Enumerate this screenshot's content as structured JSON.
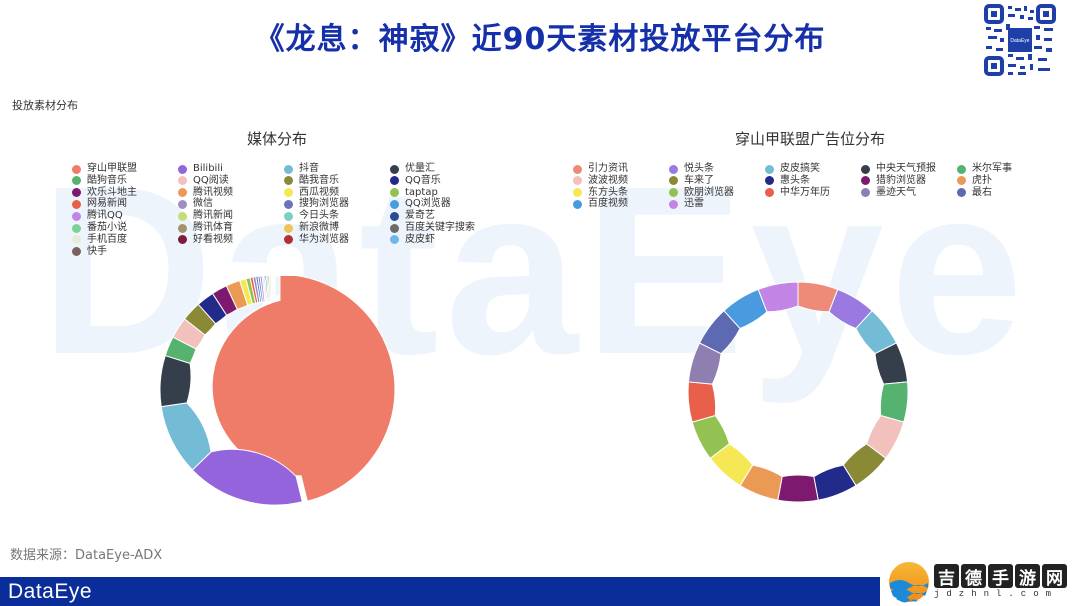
{
  "header": {
    "title": "《龙息：神寂》近90天素材投放平台分布",
    "qr_icon": "qr-code-icon",
    "qr_center_label": "DataEye"
  },
  "section_label": "投放素材分布",
  "watermark": "DataEye",
  "source": "数据来源：DataEye-ADX",
  "footer": {
    "logo": "DataEye",
    "site_name": [
      "吉",
      "德",
      "手",
      "游",
      "网"
    ],
    "site_url": "jdzhnl.com",
    "bar_color": "#0a2d9a"
  },
  "colors": {
    "title": "#1530a8",
    "accent": "#0a2d9a"
  },
  "chart_data": [
    {
      "type": "pie",
      "subtype": "donut",
      "title": "媒体分布",
      "legend_position": "top-left",
      "categories": [
        "穿山甲联盟",
        "Bilibili",
        "抖音",
        "优量汇",
        "酷狗音乐",
        "QQ阅读",
        "酷我音乐",
        "QQ音乐",
        "欢乐斗地主",
        "腾讯视频",
        "西瓜视频",
        "taptap",
        "网易新闻",
        "微信",
        "搜狗浏览器",
        "QQ浏览器",
        "腾讯QQ",
        "腾讯新闻",
        "今日头条",
        "爱奇艺",
        "番茄小说",
        "腾讯体育",
        "新浪微博",
        "百度关键字搜索",
        "手机百度",
        "好看视频",
        "华为浏览器",
        "皮皮虾",
        "快手"
      ],
      "values": [
        46.5,
        16.7,
        10.0,
        7.2,
        2.8,
        3.0,
        2.8,
        2.5,
        2.2,
        2.0,
        0.9,
        0.6,
        0.4,
        0.4,
        0.3,
        0.3,
        0.3,
        0.2,
        0.2,
        0.2,
        0.2,
        0.2,
        0.2,
        0.1,
        0.1,
        0.1,
        0.1,
        0.1,
        0.1
      ],
      "colors": [
        "#ee7c68",
        "#9364dc",
        "#74bcd6",
        "#343f4b",
        "#56b36f",
        "#f2c0bd",
        "#8a8a36",
        "#222a8a",
        "#7d1a6f",
        "#eb9a55",
        "#f6e854",
        "#93c152",
        "#e8604a",
        "#9f8fbf",
        "#6a74b8",
        "#4a9ae0",
        "#c285e6",
        "#c8dc78",
        "#7ccfc6",
        "#2a4a94",
        "#7fd19a",
        "#a3926d",
        "#edc45a",
        "#6b6b6b",
        "#e5edd8",
        "#7a1d3e",
        "#b23030",
        "#6fb6ea",
        "#7e5f5f"
      ]
    },
    {
      "type": "pie",
      "subtype": "donut",
      "title": "穿山甲联盟广告位分布",
      "legend_position": "top",
      "categories": [
        "引力资讯",
        "悦头条",
        "皮皮搞笑",
        "中央天气预报",
        "米尔军事",
        "波波视频",
        "车来了",
        "惠头条",
        "猎豹浏览器",
        "虎扑",
        "东方头条",
        "欧朋浏览器",
        "中华万年历",
        "墨迹天气",
        "最右",
        "百度视频",
        "迅雷"
      ],
      "values": [
        5.88,
        5.88,
        5.88,
        5.88,
        5.88,
        5.88,
        5.88,
        5.88,
        5.88,
        5.88,
        5.88,
        5.88,
        5.88,
        5.88,
        5.88,
        5.88,
        5.88
      ],
      "colors": [
        "#ee8a78",
        "#9a79e0",
        "#74bcd6",
        "#343f4b",
        "#56b36f",
        "#f2c0bd",
        "#8a8a36",
        "#222a8a",
        "#7d1a6f",
        "#eb9a55",
        "#f6e854",
        "#93c152",
        "#e8604a",
        "#8f7fb0",
        "#5d6ab2",
        "#4a9ae0",
        "#c285e6"
      ]
    }
  ]
}
